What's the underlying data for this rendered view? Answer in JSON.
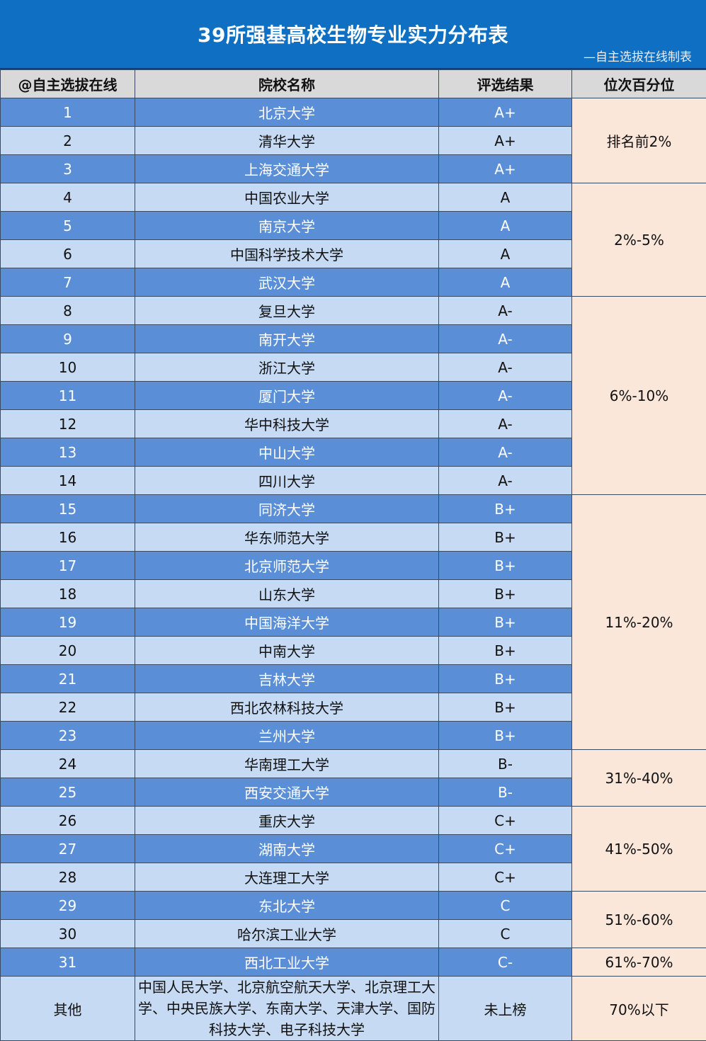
{
  "header": {
    "title": "39所强基高校生物专业实力分布表",
    "subtitle": "—自主选拔在线制表"
  },
  "columns": [
    "@自主选拔在线",
    "院校名称",
    "评选结果",
    "位次百分位"
  ],
  "rows": [
    {
      "rank": "1",
      "school": "北京大学",
      "grade": "A+"
    },
    {
      "rank": "2",
      "school": "清华大学",
      "grade": "A+"
    },
    {
      "rank": "3",
      "school": "上海交通大学",
      "grade": "A+"
    },
    {
      "rank": "4",
      "school": "中国农业大学",
      "grade": "A"
    },
    {
      "rank": "5",
      "school": "南京大学",
      "grade": "A"
    },
    {
      "rank": "6",
      "school": "中国科学技术大学",
      "grade": "A"
    },
    {
      "rank": "7",
      "school": "武汉大学",
      "grade": "A"
    },
    {
      "rank": "8",
      "school": "复旦大学",
      "grade": "A-"
    },
    {
      "rank": "9",
      "school": "南开大学",
      "grade": "A-"
    },
    {
      "rank": "10",
      "school": "浙江大学",
      "grade": "A-"
    },
    {
      "rank": "11",
      "school": "厦门大学",
      "grade": "A-"
    },
    {
      "rank": "12",
      "school": "华中科技大学",
      "grade": "A-"
    },
    {
      "rank": "13",
      "school": "中山大学",
      "grade": "A-"
    },
    {
      "rank": "14",
      "school": "四川大学",
      "grade": "A-"
    },
    {
      "rank": "15",
      "school": "同济大学",
      "grade": "B+"
    },
    {
      "rank": "16",
      "school": "华东师范大学",
      "grade": "B+"
    },
    {
      "rank": "17",
      "school": "北京师范大学",
      "grade": "B+"
    },
    {
      "rank": "18",
      "school": "山东大学",
      "grade": "B+"
    },
    {
      "rank": "19",
      "school": "中国海洋大学",
      "grade": "B+"
    },
    {
      "rank": "20",
      "school": "中南大学",
      "grade": "B+"
    },
    {
      "rank": "21",
      "school": "吉林大学",
      "grade": "B+"
    },
    {
      "rank": "22",
      "school": "西北农林科技大学",
      "grade": "B+"
    },
    {
      "rank": "23",
      "school": "兰州大学",
      "grade": "B+"
    },
    {
      "rank": "24",
      "school": "华南理工大学",
      "grade": "B-"
    },
    {
      "rank": "25",
      "school": "西安交通大学",
      "grade": "B-"
    },
    {
      "rank": "26",
      "school": "重庆大学",
      "grade": "C+"
    },
    {
      "rank": "27",
      "school": "湖南大学",
      "grade": "C+"
    },
    {
      "rank": "28",
      "school": "大连理工大学",
      "grade": "C+"
    },
    {
      "rank": "29",
      "school": "东北大学",
      "grade": "C"
    },
    {
      "rank": "30",
      "school": "哈尔滨工业大学",
      "grade": "C"
    },
    {
      "rank": "31",
      "school": "西北工业大学",
      "grade": "C-"
    }
  ],
  "percentiles": [
    {
      "label": "排名前2%",
      "span": 3
    },
    {
      "label": "2%-5%",
      "span": 4
    },
    {
      "label": "6%-10%",
      "span": 7
    },
    {
      "label": "11%-20%",
      "span": 9
    },
    {
      "label": "31%-40%",
      "span": 2
    },
    {
      "label": "41%-50%",
      "span": 3
    },
    {
      "label": "51%-60%",
      "span": 2
    },
    {
      "label": "61%-70%",
      "span": 1
    }
  ],
  "other": {
    "rank": "其他",
    "schools": "中国人民大学、北京航空航天大学、北京理工大学、中央民族大学、东南大学、天津大学、国防科技大学、电子科技大学",
    "grade": "未上榜",
    "percentile": "70%以下"
  },
  "colors": {
    "title_bg": "#0f6fc3",
    "header_bg": "#d9d9d9",
    "dark_row": "#5a8fd8",
    "light_row": "#c6daf3",
    "percentile_bg": "#fbe6da"
  }
}
